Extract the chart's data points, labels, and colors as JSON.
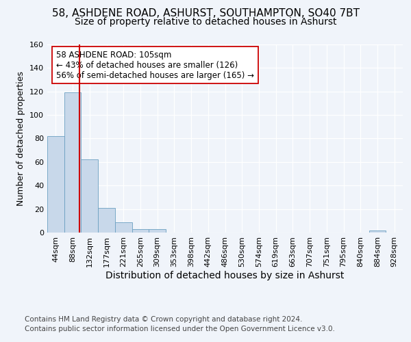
{
  "title1": "58, ASHDENE ROAD, ASHURST, SOUTHAMPTON, SO40 7BT",
  "title2": "Size of property relative to detached houses in Ashurst",
  "xlabel": "Distribution of detached houses by size in Ashurst",
  "ylabel": "Number of detached properties",
  "bin_labels": [
    "44sqm",
    "88sqm",
    "132sqm",
    "177sqm",
    "221sqm",
    "265sqm",
    "309sqm",
    "353sqm",
    "398sqm",
    "442sqm",
    "486sqm",
    "530sqm",
    "574sqm",
    "619sqm",
    "663sqm",
    "707sqm",
    "751sqm",
    "795sqm",
    "840sqm",
    "884sqm",
    "928sqm"
  ],
  "bar_values": [
    82,
    119,
    62,
    21,
    9,
    3,
    3,
    0,
    0,
    0,
    0,
    0,
    0,
    0,
    0,
    0,
    0,
    0,
    0,
    2,
    0
  ],
  "bar_color": "#c8d8ea",
  "bar_edge_color": "#6a9fc0",
  "property_label": "58 ASHDENE ROAD: 105sqm",
  "pct_smaller": 43,
  "n_smaller": 126,
  "pct_larger_semi": 56,
  "n_larger_semi": 165,
  "vline_color": "#cc0000",
  "annotation_box_color": "#ffffff",
  "annotation_box_edge": "#cc0000",
  "ylim": [
    0,
    160
  ],
  "yticks": [
    0,
    20,
    40,
    60,
    80,
    100,
    120,
    140,
    160
  ],
  "footer1": "Contains HM Land Registry data © Crown copyright and database right 2024.",
  "footer2": "Contains public sector information licensed under the Open Government Licence v3.0.",
  "background_color": "#f0f4fa",
  "grid_color": "#ffffff",
  "title1_fontsize": 11,
  "title2_fontsize": 10,
  "xlabel_fontsize": 10,
  "ylabel_fontsize": 9,
  "tick_fontsize": 8,
  "footer_fontsize": 7.5,
  "ann_fontsize": 8.5
}
